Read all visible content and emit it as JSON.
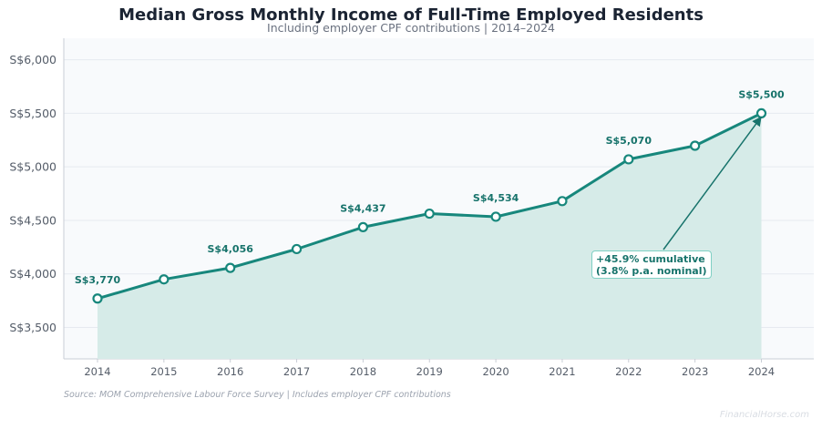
{
  "title": "Median Gross Monthly Income of Full-Time Employed Residents",
  "subtitle": "Including employer CPF contributions | 2014–2024",
  "source": "Source: MOM Comprehensive Labour Force Survey | Includes employer CPF contributions",
  "watermark": "FinancialHorse.com",
  "annotation": {
    "line1": "+45.9% cumulative",
    "line2": "(3.8% p.a. nominal)"
  },
  "colors": {
    "line": "#17877c",
    "fill": "#d6ebe8",
    "plot_bg": "#f8fafc",
    "label": "#17736b"
  },
  "chart_data": {
    "type": "line",
    "title": "Median Gross Monthly Income of Full-Time Employed Residents",
    "subtitle": "Including employer CPF contributions | 2014–2024",
    "x": [
      2014,
      2015,
      2016,
      2017,
      2018,
      2019,
      2020,
      2021,
      2022,
      2023,
      2024
    ],
    "series": [
      {
        "values": [
          3770,
          3949,
          4056,
          4232,
          4437,
          4563,
          4534,
          4680,
          5070,
          5197,
          5500
        ],
        "area_fill": true
      }
    ],
    "data_labels": [
      {
        "x": 2014,
        "text": "S$3,770"
      },
      {
        "x": 2016,
        "text": "S$4,056"
      },
      {
        "x": 2018,
        "text": "S$4,437"
      },
      {
        "x": 2020,
        "text": "S$4,534"
      },
      {
        "x": 2022,
        "text": "S$5,070"
      },
      {
        "x": 2024,
        "text": "S$5,500"
      }
    ],
    "y_ticks": [
      {
        "value": 3500,
        "label": "S$3,500"
      },
      {
        "value": 4000,
        "label": "S$4,000"
      },
      {
        "value": 4500,
        "label": "S$4,500"
      },
      {
        "value": 5000,
        "label": "S$5,000"
      },
      {
        "value": 5500,
        "label": "S$5,500"
      },
      {
        "value": 6000,
        "label": "S$6,000"
      }
    ],
    "xlabel": "",
    "ylabel": "",
    "xlim": [
      2013.5,
      2024.8
    ],
    "ylim": [
      3200,
      6200
    ],
    "grid": "horizontal",
    "annotation_target": {
      "x": 2024,
      "y": 5500
    }
  }
}
